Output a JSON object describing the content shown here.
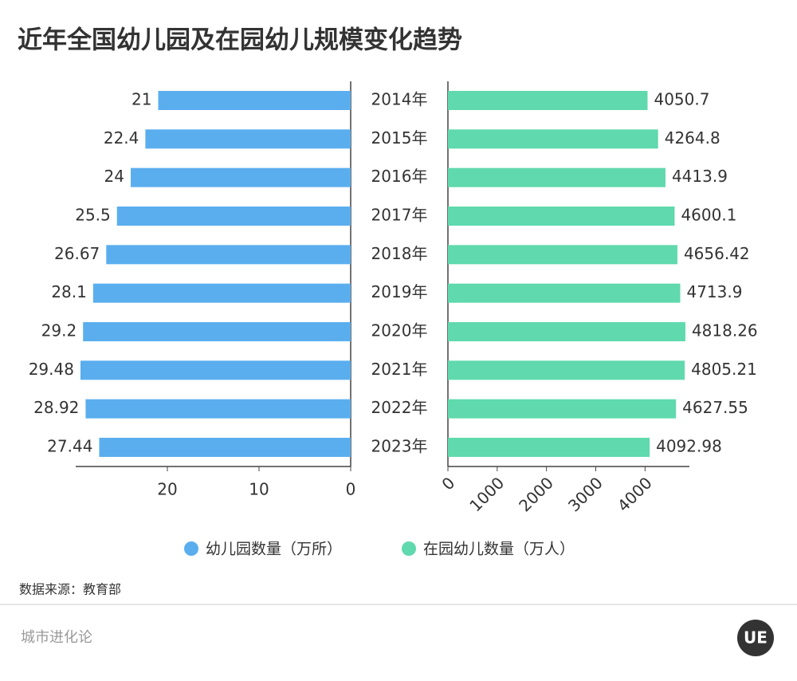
{
  "chart_data": {
    "type": "butterfly",
    "title": "近年全国幼儿园及在园幼儿规模变化趋势",
    "categories": [
      "2014年",
      "2015年",
      "2016年",
      "2017年",
      "2018年",
      "2019年",
      "2020年",
      "2021年",
      "2022年",
      "2023年"
    ],
    "series": [
      {
        "name": "幼儿园数量（万所）",
        "color": "#5aaeee",
        "values": [
          21,
          22.4,
          24,
          25.5,
          26.67,
          28.1,
          29.2,
          29.48,
          28.92,
          27.44
        ],
        "xlim": [
          0,
          30
        ],
        "xticks": [
          0,
          10,
          20
        ],
        "reversed": true
      },
      {
        "name": "在园幼儿数量（万人）",
        "color": "#5fd9ad",
        "values": [
          4050.7,
          4264.8,
          4413.9,
          4600.1,
          4656.42,
          4713.9,
          4818.26,
          4805.21,
          4627.55,
          4092.98
        ],
        "xlim": [
          0,
          4900
        ],
        "xticks": [
          0,
          1000,
          2000,
          3000,
          4000
        ],
        "reversed": false
      }
    ],
    "source": "数据来源：教育部"
  },
  "brand": "城市进化论",
  "logo": "UE"
}
